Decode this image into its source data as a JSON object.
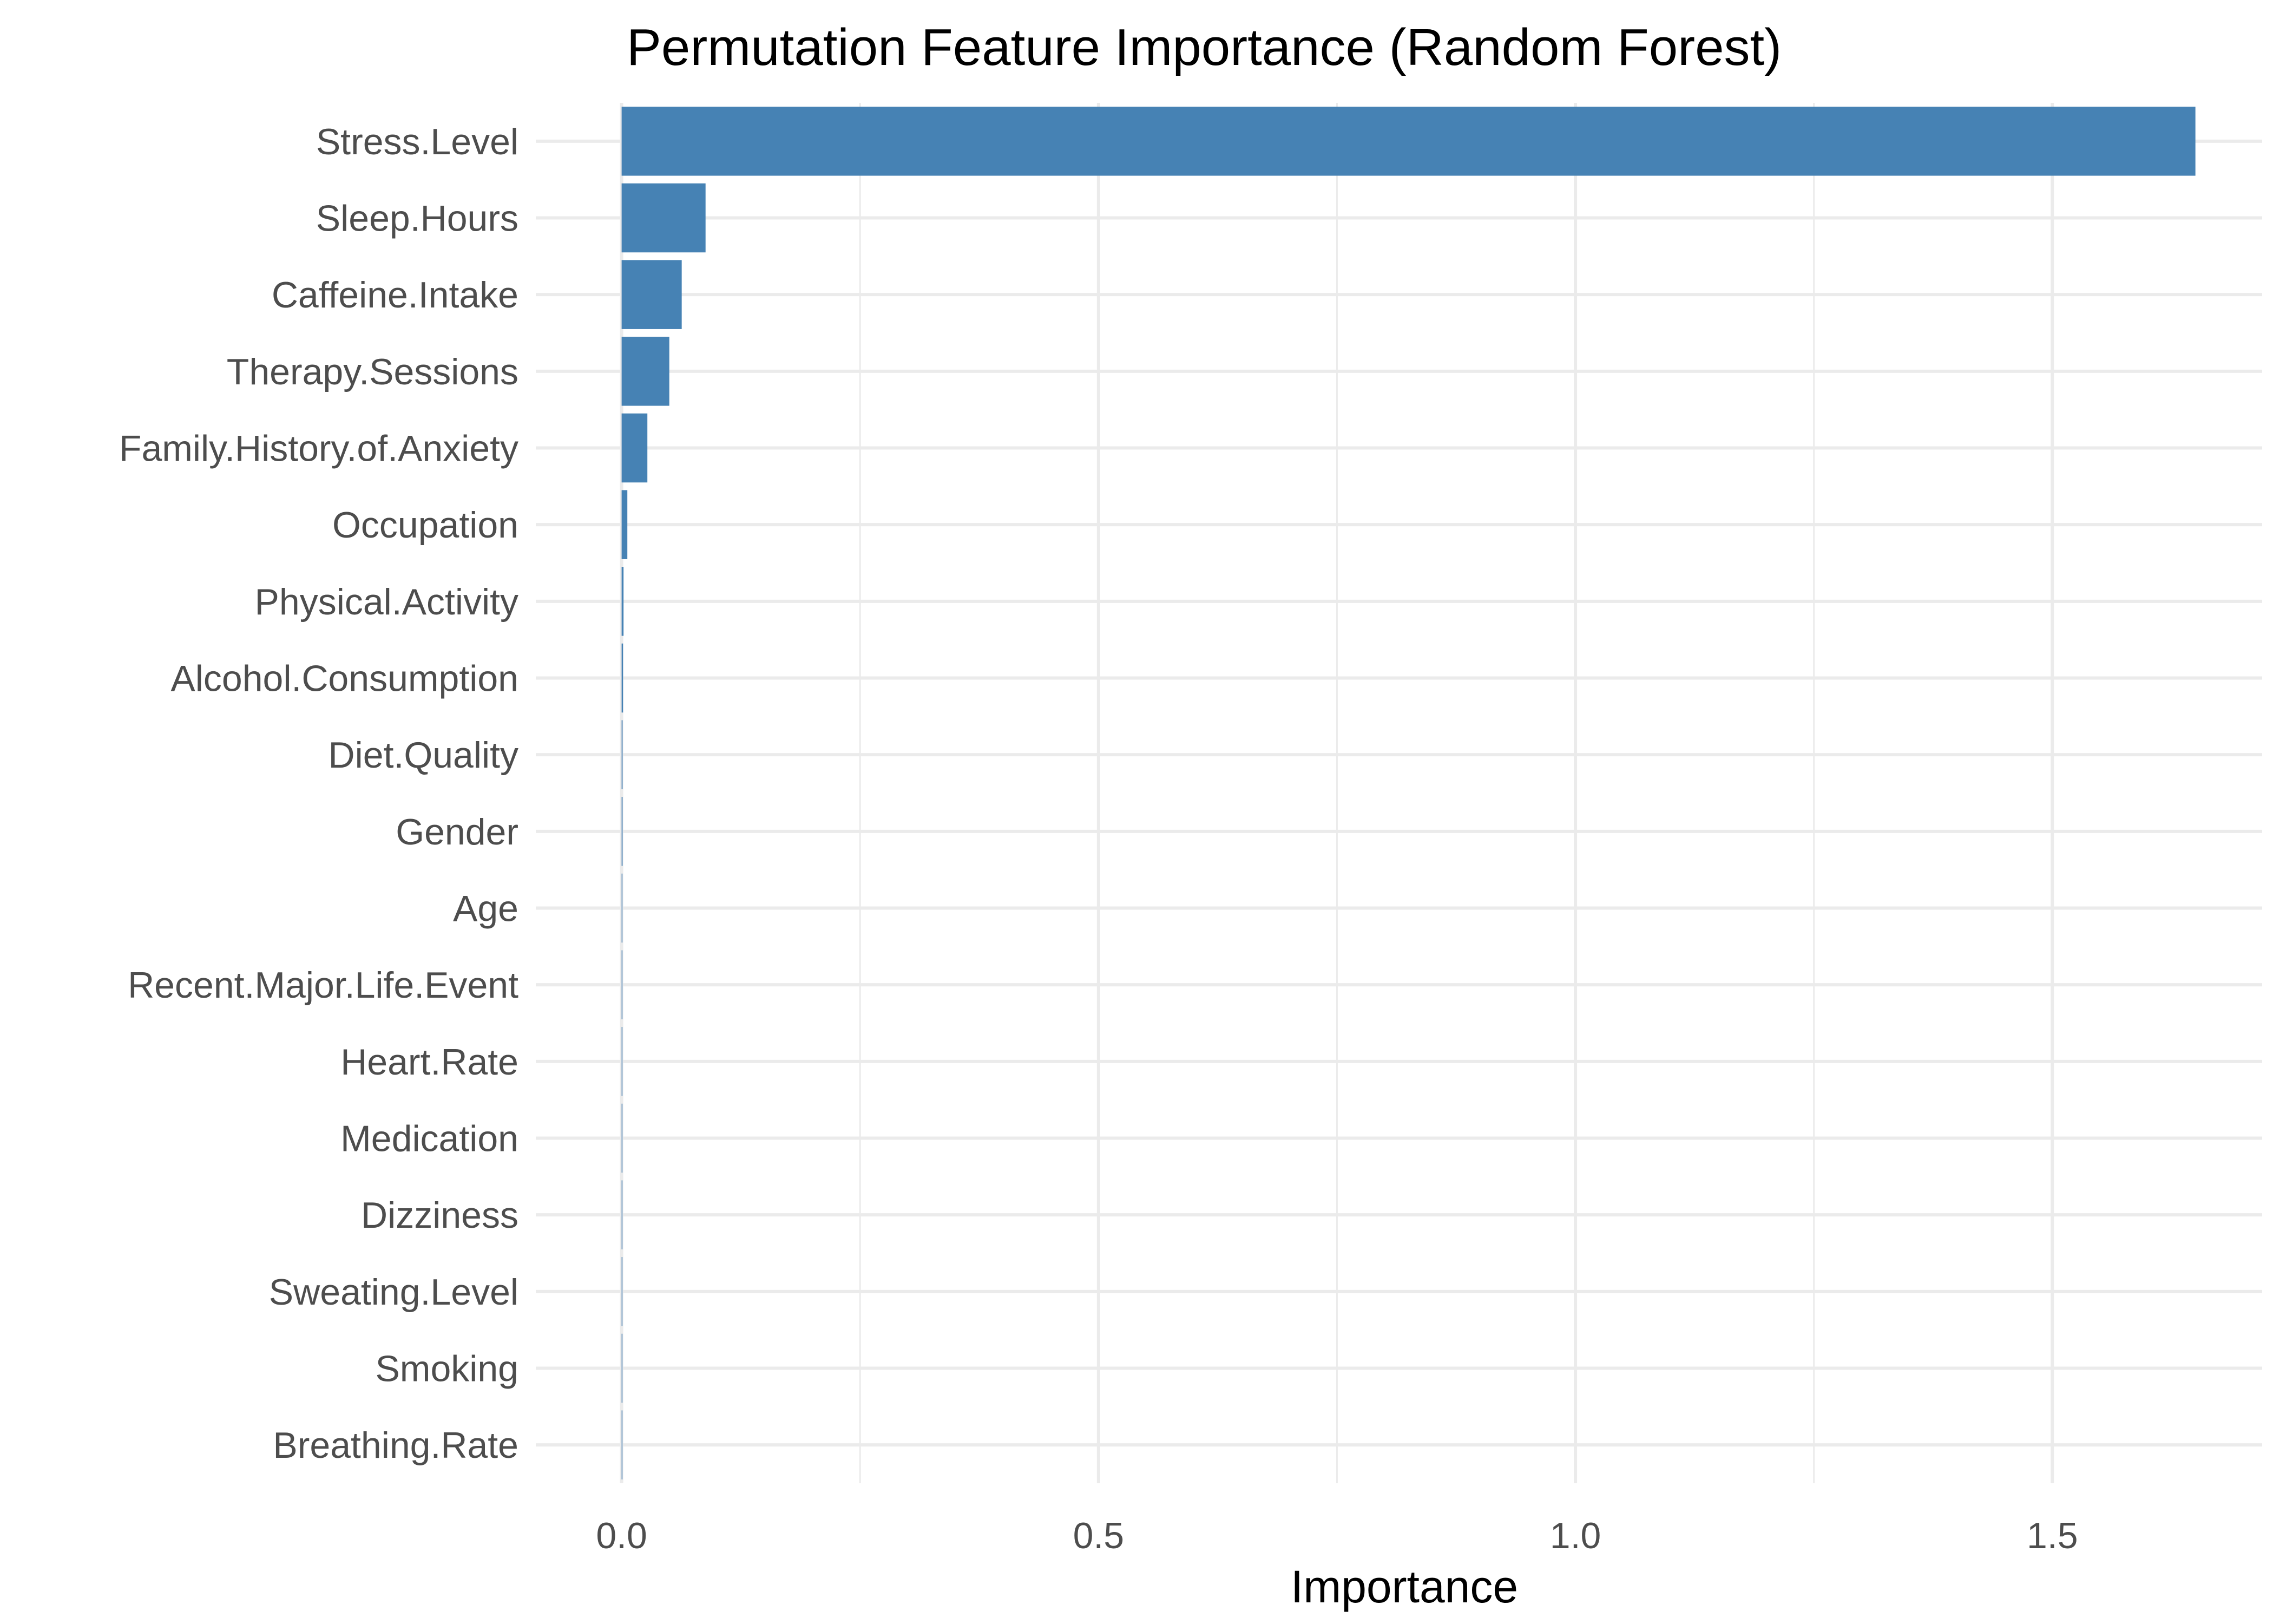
{
  "chart_data": {
    "type": "bar",
    "orientation": "horizontal",
    "title": "Permutation Feature Importance (Random Forest)",
    "xlabel": "Importance",
    "ylabel": "",
    "categories": [
      "Stress.Level",
      "Sleep.Hours",
      "Caffeine.Intake",
      "Therapy.Sessions",
      "Family.History.of.Anxiety",
      "Occupation",
      "Physical.Activity",
      "Alcohol.Consumption",
      "Diet.Quality",
      "Gender",
      "Age",
      "Recent.Major.Life.Event",
      "Heart.Rate",
      "Medication",
      "Dizziness",
      "Sweating.Level",
      "Smoking",
      "Breathing.Rate"
    ],
    "values": [
      1.65,
      0.088,
      0.063,
      0.05,
      0.027,
      0.006,
      0.002,
      0.0015,
      0.001,
      0.001,
      0.0008,
      0.0006,
      0.0005,
      0.0004,
      0.0003,
      0.0003,
      0.0002,
      0.0002
    ],
    "xlim": [
      -0.09,
      1.72
    ],
    "xticks": [
      0.0,
      0.5,
      1.0,
      1.5
    ],
    "xtick_labels": [
      "0.0",
      "0.5",
      "1.0",
      "1.5"
    ],
    "grid": true,
    "legend": "none",
    "bar_color": "#4682b4",
    "grid_color": "#ebebeb"
  }
}
